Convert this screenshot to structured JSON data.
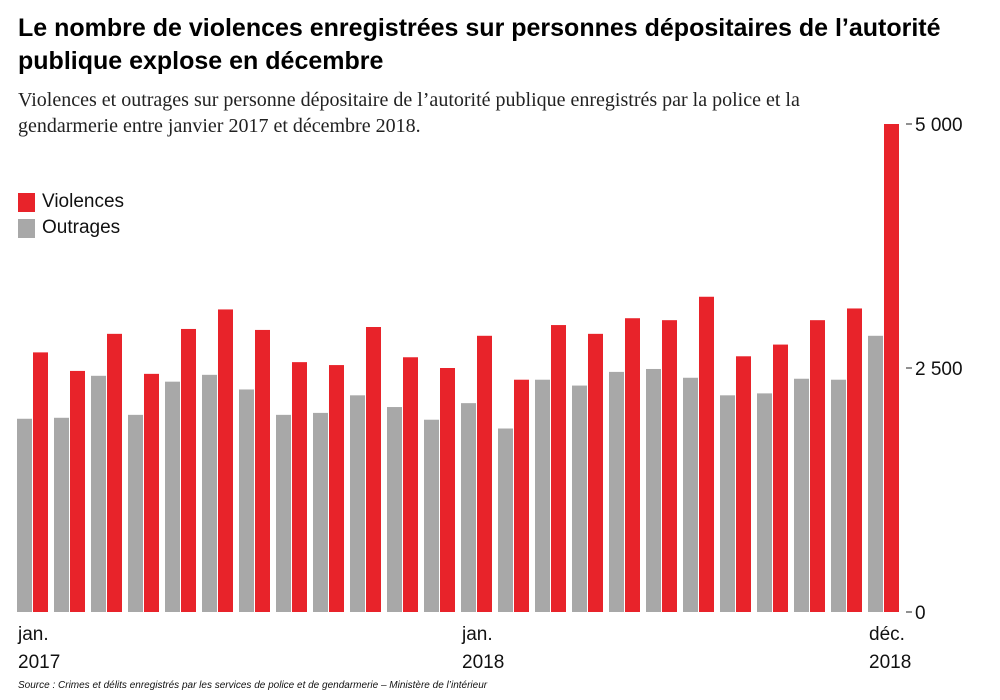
{
  "title": "Le nombre de violences enregistrées sur personnes dépositaires de l’autorité publique explose en décembre",
  "subtitle": "Violences et outrages sur personne dépositaire de l’autorité publique enregistrés par la police et la gendarmerie entre janvier 2017 et décembre 2018.",
  "source": "Source : Crimes et délits enregistrés par les services de police et de gendarmerie – Ministère de l’intérieur",
  "colors": {
    "violences": "#e8232a",
    "outrages": "#a8a8a8"
  },
  "chart_data": {
    "type": "bar",
    "categories": [
      "2017-01",
      "2017-02",
      "2017-03",
      "2017-04",
      "2017-05",
      "2017-06",
      "2017-07",
      "2017-08",
      "2017-09",
      "2017-10",
      "2017-11",
      "2017-12",
      "2018-01",
      "2018-02",
      "2018-03",
      "2018-04",
      "2018-05",
      "2018-06",
      "2018-07",
      "2018-08",
      "2018-09",
      "2018-10",
      "2018-11",
      "2018-12"
    ],
    "series": [
      {
        "name": "Violences",
        "values": [
          2660,
          2470,
          2850,
          2440,
          2900,
          3100,
          2890,
          2560,
          2530,
          2920,
          2610,
          2500,
          2830,
          2380,
          2940,
          2850,
          3010,
          2990,
          3230,
          2620,
          2740,
          2990,
          3110,
          5000
        ]
      },
      {
        "name": "Outrages",
        "values": [
          1980,
          1990,
          2420,
          2020,
          2360,
          2430,
          2280,
          2020,
          2040,
          2220,
          2100,
          1970,
          2140,
          1880,
          2380,
          2320,
          2460,
          2490,
          2400,
          2220,
          2240,
          2390,
          2380,
          2830
        ]
      }
    ],
    "ylim": [
      0,
      5000
    ],
    "y_ticks": [
      {
        "value": 0,
        "label": "0"
      },
      {
        "value": 2500,
        "label": "2 500"
      },
      {
        "value": 5000,
        "label": "5 000"
      }
    ],
    "x_labels": [
      {
        "index": 0,
        "line1": "jan.",
        "line2": "2017"
      },
      {
        "index": 12,
        "line1": "jan.",
        "line2": "2018"
      },
      {
        "index": 23,
        "line1": "déc.",
        "line2": "2018"
      }
    ],
    "legend_placement": "top-left",
    "grid": false
  }
}
